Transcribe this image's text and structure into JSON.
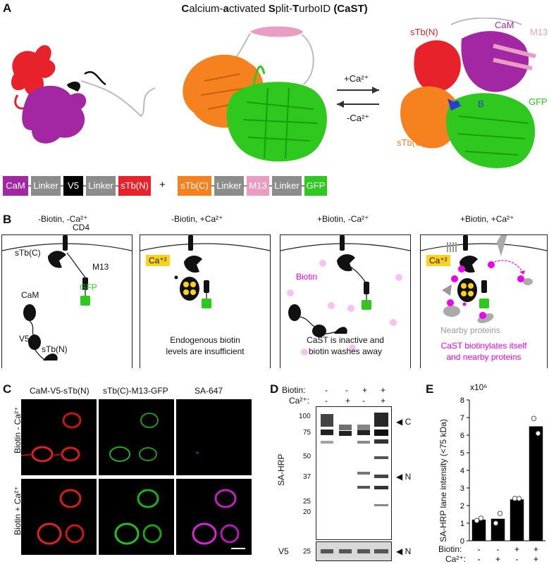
{
  "panels": {
    "a": "A",
    "b": "B",
    "c": "C",
    "d": "D",
    "e": "E"
  },
  "title": {
    "parts": [
      {
        "bold": "C",
        "rest": "alcium-"
      },
      {
        "bold": "a",
        "rest": "ctivated "
      },
      {
        "bold": "S",
        "rest": "plit-"
      },
      {
        "bold": "T",
        "rest": "urboID "
      },
      {
        "bold": "(CaST)",
        "rest": ""
      }
    ]
  },
  "structure_labels": {
    "stbn": "sTb(N)",
    "cam": "CaM",
    "m13": "M13",
    "b": "B",
    "gfp": "GFP",
    "stbc": "sTb(C)",
    "plus_ca": "+Ca²⁺",
    "minus_ca": "-Ca²⁺"
  },
  "construct1": [
    "CaM",
    "Linker",
    "V5",
    "Linker",
    "sTb(N)"
  ],
  "construct2": [
    "sTb(C)",
    "Linker",
    "M13",
    "Linker",
    "GFP"
  ],
  "plus_sign": "+",
  "colors": {
    "cam": "#a327a3",
    "linker": "#8c8c8c",
    "v5": "#000000",
    "stbn": "#e8222a",
    "stbc": "#f5821f",
    "m13": "#e99dc3",
    "gfp": "#2ec81e",
    "biotin": "#ee00ee",
    "ca_box": "#ffd21c",
    "bar": "#000000"
  },
  "panel_b": {
    "cells": [
      {
        "heading": "-Biotin, -Ca²⁺",
        "caption": "",
        "labels": {
          "cd4": "CD4",
          "stbc": "sTb(C)",
          "m13": "M13",
          "gfp": "GFP",
          "cam": "CaM",
          "v5": "V5",
          "stbn": "sTb(N)"
        }
      },
      {
        "heading": "-Biotin, +Ca²⁺",
        "ca": "Ca⁺²",
        "caption1": "Endogenous biotin",
        "caption2": "levels are insufficient"
      },
      {
        "heading": "+Biotin, -Ca²⁺",
        "biotin": "Biotin",
        "caption1": "CaST is inactive and",
        "caption2": "biotin washes away"
      },
      {
        "heading": "+Biotin, +Ca²⁺",
        "ca": "Ca⁺²",
        "nearby": "Nearby proteins",
        "caption1": "CaST biotinylates itself",
        "caption2": "and nearby proteins"
      }
    ]
  },
  "panel_c": {
    "columns": [
      "CaM-V5-sTb(N)",
      "sTb(C)-M13-GFP",
      "SA-647"
    ],
    "rows": [
      "Biotin - Ca²⁺",
      "Biotin + Ca²⁺"
    ]
  },
  "panel_d": {
    "biotin_label": "Biotin:",
    "ca_label": "Ca²⁺:",
    "biotin": [
      "-",
      "-",
      "+",
      "+"
    ],
    "ca": [
      "-",
      "+",
      "-",
      "+"
    ],
    "markers": [
      "100",
      "75",
      "50",
      "37",
      "25",
      "20"
    ],
    "blot_label": "SA-HRP",
    "c_arrow": "C",
    "n_arrow": "N",
    "v5_label": "V5",
    "v5_marker": "25",
    "v5_arrow": "N"
  },
  "chart_data": {
    "type": "bar",
    "categories": [
      "-Biotin -Ca²⁺",
      "-Biotin +Ca²⁺",
      "+Biotin -Ca²⁺",
      "+Biotin +Ca²⁺"
    ],
    "values": [
      1.2,
      1.25,
      2.35,
      6.5
    ],
    "points": [
      [
        1.15,
        1.28
      ],
      [
        1.0,
        1.55
      ],
      [
        2.4,
        2.4
      ],
      [
        6.95,
        6.1
      ]
    ],
    "ylabel": "SA-HRP lane intensity (<75 kDa)",
    "multiplier": "x10⁶",
    "ylim": [
      0,
      8
    ],
    "yticks": [
      "0",
      "1",
      "2",
      "3",
      "4",
      "5",
      "6",
      "7",
      "8"
    ],
    "biotin_label": "Biotin:",
    "ca_label": "Ca²⁺:",
    "biotin": [
      "-",
      "-",
      "+",
      "+"
    ],
    "ca": [
      "-",
      "+",
      "-",
      "+"
    ]
  }
}
